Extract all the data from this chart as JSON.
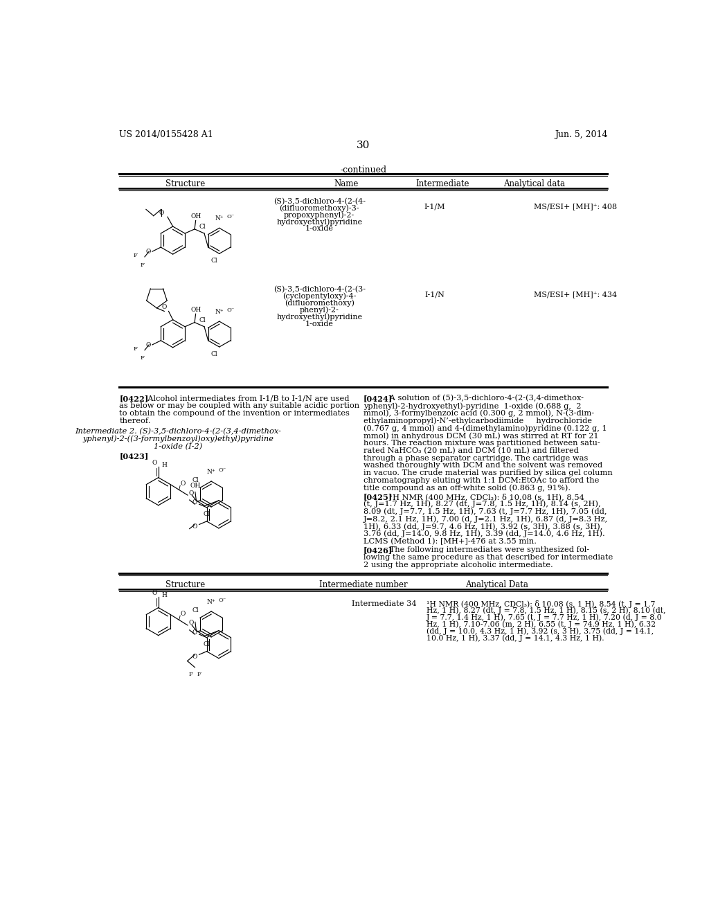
{
  "header_left": "US 2014/0155428 A1",
  "header_right": "Jun. 5, 2014",
  "page_number": "30",
  "continued_label": "-continued",
  "table1_headers": [
    "Structure",
    "Name",
    "Intermediate",
    "Analytical data"
  ],
  "row1_name_lines": [
    "(S)-3,5-dichloro-4-(2-(4-",
    "(difluoromethoxy)-3-",
    "propoxyphenyl)-2-",
    "hydroxyethyl)pyridine",
    "1-oxide"
  ],
  "row1_intermediate": "I-1/M",
  "row1_analytical": "MS/ESI+ [MH]⁺: 408",
  "row2_name_lines": [
    "(S)-3,5-dichloro-4-(2-(3-",
    "(cyclopentyloxy)-4-",
    "(difluoromethoxy)",
    "phenyl)-2-",
    "hydroxyethyl)pyridine",
    "1-oxide"
  ],
  "row2_intermediate": "I-1/N",
  "row2_analytical": "MS/ESI+ [MH]⁺: 434",
  "table2_headers": [
    "Structure",
    "Intermediate number",
    "Analytical Data"
  ],
  "table2_row1_intermediate": "Intermediate 34",
  "table2_row1_analytical_lines": [
    "¹H NMR (400 MHz, CDCl₃): δ 10.08 (s, 1 H), 8.54 (t, J = 1.7",
    "Hz, 1 H), 8.27 (dt, J = 7.8, 1.5 Hz, 1 H), 8.15 (s, 2 H), 8.10 (dt,",
    "J = 7.7, 1.4 Hz, 1 H), 7.65 (t, J = 7.7 Hz, 1 H), 7.20 (d, J = 8.0",
    "Hz, 1 H), 7.10-7.06 (m, 2 H), 6.55 (t, J = 74.9 Hz, 1 H), 6.32",
    "(dd, J = 10.0, 4.3 Hz, 1 H), 3.92 (s, 3 H), 3.75 (dd, J = 14.1,",
    "10.0 Hz, 1 H), 3.37 (dd, J = 14.1, 4.3 Hz, 1 H)."
  ],
  "para0422_lines": [
    "[0422]   Alcohol intermediates from I-1/B to I-1/N are used",
    "as below or may be coupled with any suitable acidic portion",
    "to obtain the compound of the invention or intermediates",
    "thereof."
  ],
  "intermediate2_lines": [
    "Intermediate 2. (S)-3,5-dichloro-4-(2-(3,4-dimethox-",
    "yphenyl)-2-((3-formylbenzoyl)oxy)ethyl)pyridine",
    "1-oxide (I-2)"
  ],
  "para0424_lines": [
    "[0424]   A solution of (5)-3,5-dichloro-4-(2-(3,4-dimethox-",
    "yphenyl)-2-hydroxyethyl)-pyridine  1-oxide (0.688 g,  2",
    "mmol), 3-formylbenzoic acid (0.300 g, 2 mmol), N-(3-dim-",
    "ethylaminopropyl)-N’-ethylcarbodiimide     hydrochloride",
    "(0.767 g, 4 mmol) and 4-(dimethylamino)pyridine (0.122 g, 1",
    "mmol) in anhydrous DCM (30 mL) was stirred at RT for 21",
    "hours. The reaction mixture was partitioned between satu-",
    "rated NaHCO₃ (20 mL) and DCM (10 mL) and filtered",
    "through a phase separator cartridge. The cartridge was",
    "washed thoroughly with DCM and the solvent was removed",
    "in vacuo. The crude material was purified by silica gel column",
    "chromatography eluting with 1:1 DCM:EtOAc to afford the",
    "title compound as an off-white solid (0.863 g, 91%)."
  ],
  "para0425_lines": [
    "[0425]   ¹H NMR (400 MHz, CDCl₃): δ 10.08 (s, 1H), 8.54",
    "(t, J=1.7 Hz, 1H), 8.27 (dt, J=7.8, 1.5 Hz, 1H), 8.14 (s, 2H),",
    "8.09 (dt, J=7.7, 1.5 Hz, 1H), 7.63 (t, J=7.7 Hz, 1H), 7.05 (dd,",
    "J=8.2, 2.1 Hz, 1H), 7.00 (d, J=2.1 Hz, 1H), 6.87 (d, J=8.3 Hz,",
    "1H), 6.33 (dd, J=9.7, 4.6 Hz, 1H), 3.92 (s, 3H), 3.88 (s, 3H),",
    "3.76 (dd, J=14.0, 9.8 Hz, 1H), 3.39 (dd, J=14.0, 4.6 Hz, 1H).",
    "LCMS (Method 1): [MH+]-476 at 3.55 min."
  ],
  "para0426_lines": [
    "[0426]   The following intermediates were synthesized fol-",
    "lowing the same procedure as that described for intermediate",
    "2 using the appropriate alcoholic intermediate."
  ],
  "bg_color": "#ffffff"
}
